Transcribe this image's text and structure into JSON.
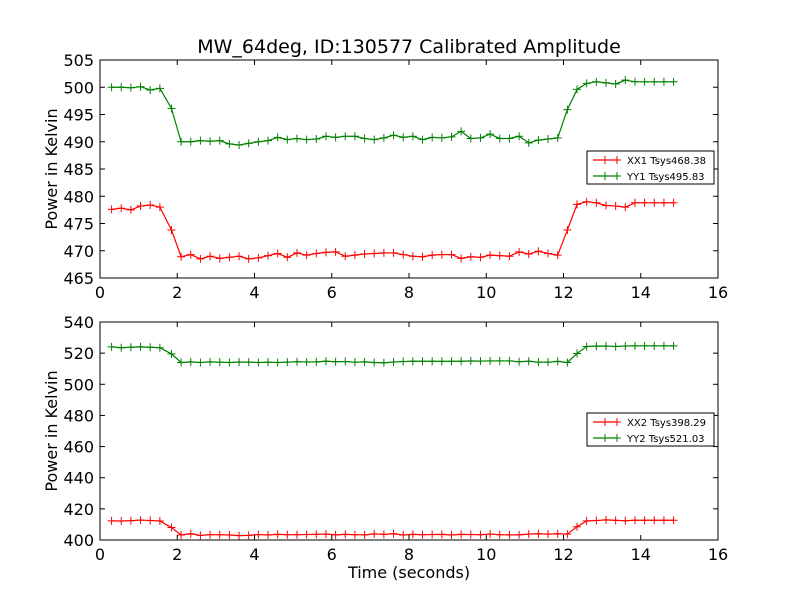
{
  "chart_data": [
    {
      "type": "line",
      "title": "MW_64deg, ID:130577 Calibrated Amplitude",
      "xlabel": "",
      "ylabel": "Power in Kelvin",
      "xlim": [
        0,
        16
      ],
      "ylim": [
        465,
        505
      ],
      "xticks": [
        0,
        2,
        4,
        6,
        8,
        10,
        12,
        14,
        16
      ],
      "yticks": [
        465,
        470,
        475,
        480,
        485,
        490,
        495,
        500,
        505
      ],
      "grid": false,
      "legend_position": "center-right",
      "marker": "+",
      "x": [
        0.3,
        0.55,
        0.8,
        1.05,
        1.3,
        1.55,
        1.85,
        2.1,
        2.35,
        2.6,
        2.85,
        3.1,
        3.35,
        3.6,
        3.85,
        4.1,
        4.35,
        4.6,
        4.85,
        5.1,
        5.35,
        5.6,
        5.85,
        6.1,
        6.35,
        6.6,
        6.85,
        7.1,
        7.35,
        7.6,
        7.85,
        8.1,
        8.35,
        8.6,
        8.85,
        9.1,
        9.35,
        9.6,
        9.85,
        10.1,
        10.35,
        10.6,
        10.85,
        11.1,
        11.35,
        11.6,
        11.85,
        12.1,
        12.35,
        12.6,
        12.85,
        13.1,
        13.35,
        13.6,
        13.85,
        14.1,
        14.35,
        14.6,
        14.85
      ],
      "series": [
        {
          "name": "XX1 Tsys468.38",
          "color": "#ff0000",
          "values": [
            477.6,
            477.8,
            477.5,
            478.2,
            478.4,
            478.0,
            473.8,
            468.9,
            469.3,
            468.5,
            469.0,
            468.6,
            468.8,
            469.0,
            468.5,
            468.7,
            469.1,
            469.5,
            468.8,
            469.6,
            469.2,
            469.5,
            469.7,
            469.8,
            469.0,
            469.2,
            469.4,
            469.5,
            469.6,
            469.6,
            469.3,
            469.0,
            468.9,
            469.2,
            469.3,
            469.3,
            468.6,
            468.9,
            468.8,
            469.2,
            469.1,
            469.0,
            469.8,
            469.4,
            469.9,
            469.5,
            469.2,
            473.8,
            478.5,
            479.0,
            478.8,
            478.3,
            478.2,
            478.0,
            478.8,
            478.8,
            478.8,
            478.8,
            478.8
          ],
          "values_note": ""
        },
        {
          "name": "YY1 Tsys495.83",
          "color": "#008000",
          "values": [
            500.0,
            500.0,
            499.9,
            500.1,
            499.5,
            499.8,
            496.1,
            490.0,
            490.0,
            490.2,
            490.1,
            490.2,
            489.6,
            489.4,
            489.7,
            490.0,
            490.2,
            490.8,
            490.4,
            490.6,
            490.4,
            490.5,
            491.0,
            490.8,
            491.0,
            491.0,
            490.6,
            490.4,
            490.7,
            491.2,
            490.8,
            491.0,
            490.4,
            490.8,
            490.7,
            490.9,
            491.9,
            490.6,
            490.7,
            491.4,
            490.6,
            490.6,
            491.0,
            489.8,
            490.3,
            490.5,
            490.7,
            495.9,
            499.6,
            500.7,
            501.0,
            500.8,
            500.6,
            501.3,
            501.0,
            501.0,
            501.0,
            501.0,
            501.0
          ]
        }
      ]
    },
    {
      "type": "line",
      "title": "",
      "xlabel": "Time (seconds)",
      "ylabel": "Power in Kelvin",
      "xlim": [
        0,
        16
      ],
      "ylim": [
        400,
        540
      ],
      "xticks": [
        0,
        2,
        4,
        6,
        8,
        10,
        12,
        14,
        16
      ],
      "yticks": [
        400,
        420,
        440,
        460,
        480,
        500,
        520,
        540
      ],
      "grid": false,
      "legend_position": "center-right",
      "marker": "+",
      "x": [
        0.3,
        0.55,
        0.8,
        1.05,
        1.3,
        1.55,
        1.85,
        2.1,
        2.35,
        2.6,
        2.85,
        3.1,
        3.35,
        3.6,
        3.85,
        4.1,
        4.35,
        4.6,
        4.85,
        5.1,
        5.35,
        5.6,
        5.85,
        6.1,
        6.35,
        6.6,
        6.85,
        7.1,
        7.35,
        7.6,
        7.85,
        8.1,
        8.35,
        8.6,
        8.85,
        9.1,
        9.35,
        9.6,
        9.85,
        10.1,
        10.35,
        10.6,
        10.85,
        11.1,
        11.35,
        11.6,
        11.85,
        12.1,
        12.35,
        12.6,
        12.85,
        13.1,
        13.35,
        13.6,
        13.85,
        14.1,
        14.35,
        14.6,
        14.85
      ],
      "series": [
        {
          "name": "XX2 Tsys398.29",
          "color": "#ff0000",
          "values": [
            412.3,
            412.2,
            412.4,
            412.8,
            412.5,
            412.2,
            408.0,
            403.2,
            404.0,
            403.0,
            403.4,
            403.4,
            403.2,
            402.8,
            403.0,
            403.5,
            403.2,
            403.6,
            403.4,
            403.4,
            403.5,
            403.6,
            403.8,
            403.3,
            403.6,
            403.4,
            403.3,
            403.9,
            403.6,
            404.0,
            403.2,
            403.6,
            403.4,
            403.5,
            403.6,
            403.2,
            403.6,
            403.5,
            403.4,
            403.8,
            403.4,
            403.3,
            403.3,
            403.8,
            404.0,
            403.8,
            404.0,
            403.8,
            408.5,
            412.3,
            412.5,
            412.9,
            412.6,
            412.4,
            412.7,
            412.7,
            412.7,
            412.7,
            412.7
          ]
        },
        {
          "name": "YY2 Tsys521.03",
          "color": "#008000",
          "values": [
            524.0,
            523.5,
            523.8,
            524.0,
            523.8,
            523.5,
            519.5,
            514.0,
            514.4,
            514.0,
            514.4,
            514.2,
            514.0,
            514.3,
            514.2,
            514.0,
            514.2,
            514.0,
            514.2,
            514.5,
            514.3,
            514.4,
            514.8,
            514.5,
            514.6,
            514.2,
            514.4,
            514.0,
            513.8,
            514.3,
            514.6,
            514.8,
            514.8,
            514.8,
            514.7,
            514.8,
            514.8,
            515.0,
            514.9,
            515.0,
            515.0,
            515.0,
            514.5,
            514.8,
            514.2,
            514.2,
            514.7,
            514.0,
            519.8,
            524.3,
            524.5,
            524.6,
            524.3,
            524.6,
            524.7,
            524.7,
            524.7,
            524.7,
            524.7
          ]
        }
      ]
    }
  ]
}
